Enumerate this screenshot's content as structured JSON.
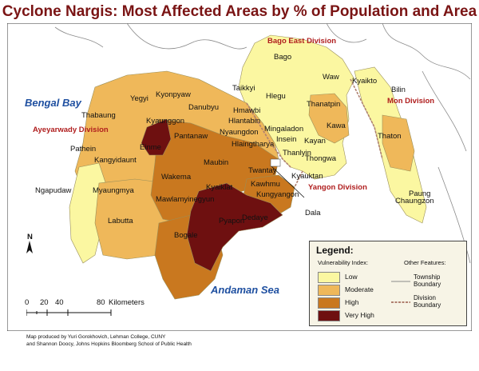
{
  "title": "Cyclone Nargis: Most Affected Areas by % of Population and Area",
  "colors": {
    "low": "#fbf7a1",
    "moderate": "#efb85a",
    "high": "#c9781f",
    "very_high": "#6e1010",
    "sea": "#ffffff",
    "land_outside": "#ffffff",
    "division_boundary": "#b08070"
  },
  "seas": {
    "bengal_bay": "Bengal Bay",
    "andaman_sea": "Andaman Sea"
  },
  "divisions": {
    "ayeyarwady": "Ayeyarwady Division",
    "bago_east": "Bago East Division",
    "mon": "Mon Division",
    "yangon": "Yangon Division"
  },
  "townships": {
    "bago": "Bago",
    "waw": "Waw",
    "kyaikto": "Kyaikto",
    "bilin": "Bilin",
    "taikkyi": "Taikkyi",
    "hlegu": "Hlegu",
    "thanatpin": "Thanatpin",
    "kawa": "Kawa",
    "yegyi": "Yegyi",
    "kyonpyaw": "Kyonpyaw",
    "danubyu": "Danubyu",
    "hmawbi": "Hmawbi",
    "thabaung": "Thabaung",
    "kyaunggon": "Kyaunggon",
    "hlantabin": "Hlantabin",
    "pantanaw": "Pantanaw",
    "nyaungdon": "Nyaungdon",
    "mingaladon": "Mingaladon",
    "hlaingtharya": "Hlaingtharya",
    "insein": "Insein",
    "kayan": "Kayan",
    "thaton": "Thaton",
    "pathein": "Pathein",
    "einme": "Einme",
    "thanlyin": "Thanlyin",
    "kangyidaunt": "Kangyidaunt",
    "maubin": "Maubin",
    "twantay": "Twantay",
    "thongwa": "Thongwa",
    "wakema": "Wakema",
    "kyauktan": "Kyauktan",
    "ngapudaw": "Ngapudaw",
    "myaungmya": "Myaungmya",
    "kyaiklat": "Kyaiklat",
    "kawhmu": "Kawhmu",
    "paung": "Paung",
    "kungyangon": "Kungyangon",
    "mawlamyinegyun": "Mawlamyinegyun",
    "dala": "Dala",
    "chaungzon": "Chaungzon",
    "labutta": "Labutta",
    "pyapon": "Pyapon",
    "dedaye": "Dedaye",
    "bogale": "Bogale"
  },
  "legend": {
    "title": "Legend:",
    "vulnerability_heading": "Vulnerability Index:",
    "other_heading": "Other Features:",
    "classes": [
      {
        "label": "Low",
        "color": "#fbf7a1"
      },
      {
        "label": "Moderate",
        "color": "#efb85a"
      },
      {
        "label": "High",
        "color": "#c9781f"
      },
      {
        "label": "Very High",
        "color": "#6e1010"
      }
    ],
    "township_boundary": "Township Boundary",
    "division_boundary": "Division Boundary"
  },
  "north_arrow": "N",
  "scale": {
    "ticks": [
      "0",
      "20",
      "40",
      "80"
    ],
    "unit": "Kilometers"
  },
  "credit": {
    "line1": "Map produced by Yuri Gorokhovich, Lehman College, CUNY",
    "line2": "and Shannon Doocy, Johns Hopkins Bloomberg School of Public Health"
  }
}
